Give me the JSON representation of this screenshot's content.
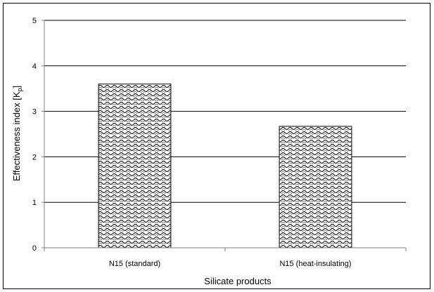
{
  "chart_data": {
    "type": "bar",
    "title": "",
    "xlabel": "Silicate products",
    "ylabel": "Effectiveness index [K",
    "ylabel_subscript": "p",
    "ylabel_close": "]",
    "categories": [
      "N15 (standard)",
      "N15 (heat-insulating)"
    ],
    "values": [
      3.6,
      2.67
    ],
    "ylim": [
      0,
      5
    ],
    "yticks": [
      "0",
      "1",
      "2",
      "3",
      "4",
      "5"
    ],
    "grid": true,
    "legend": "none",
    "bar_pattern": "wavy-crosshatch",
    "colors": {
      "bar_fill": "#ffffff",
      "bar_pattern_ink": "#000000",
      "grid": "#000000",
      "axis": "#808080"
    }
  }
}
